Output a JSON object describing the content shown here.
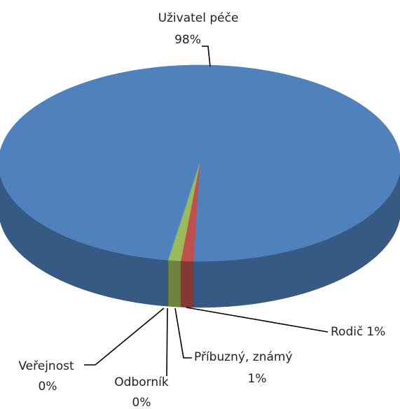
{
  "chart_data": {
    "type": "pie",
    "three_d": true,
    "categories": [
      "Uživatel péče",
      "Rodič",
      "Příbuzný, známý",
      "Odborník",
      "Veřejnost"
    ],
    "values": [
      98,
      1,
      1,
      0,
      0
    ],
    "value_labels": [
      "98%",
      "1%",
      "1%",
      "0%",
      "0%"
    ],
    "colors": [
      "#4f81bd",
      "#c0504d",
      "#9bbb59",
      "#8064a2",
      "#4bacc6"
    ]
  }
}
